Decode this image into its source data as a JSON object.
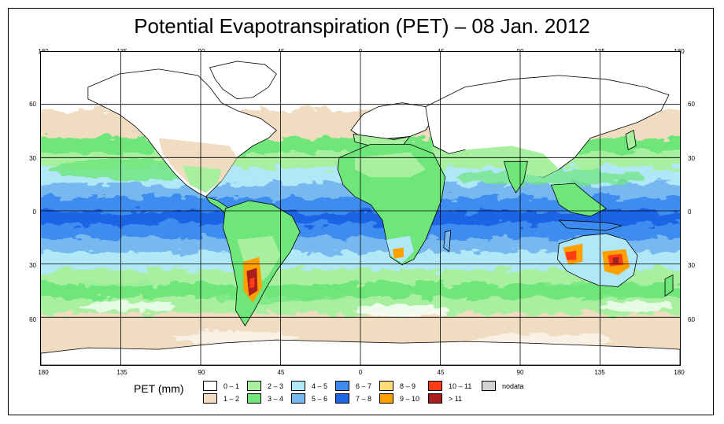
{
  "title": "Potential Evapotranspiration (PET) – 08 Jan. 2012",
  "x_ticks": [
    "180",
    "135",
    "90",
    "45",
    "0",
    "45",
    "90",
    "135",
    "180"
  ],
  "y_ticks": [
    "60",
    "30",
    "0",
    "30",
    "60"
  ],
  "legend": {
    "title": "PET (mm)",
    "items": [
      {
        "label": "0 – 1",
        "color": "#ffffff"
      },
      {
        "label": "1 – 2",
        "color": "#f0dcc0"
      },
      {
        "label": "2 – 3",
        "color": "#a8f0a0"
      },
      {
        "label": "3 – 4",
        "color": "#6ee67a"
      },
      {
        "label": "4 – 5",
        "color": "#b0e8f8"
      },
      {
        "label": "5 – 6",
        "color": "#78b8f0"
      },
      {
        "label": "6 – 7",
        "color": "#3c8cf0"
      },
      {
        "label": "7 – 8",
        "color": "#1e64e6"
      },
      {
        "label": "8 – 9",
        "color": "#ffdc78"
      },
      {
        "label": "9 – 10",
        "color": "#ffa000"
      },
      {
        "label": "10 – 11",
        "color": "#ff3c14"
      },
      {
        "label": "> 11",
        "color": "#aa1e1e"
      },
      {
        "label": "nodata",
        "color": "#d2d2d2"
      }
    ]
  }
}
